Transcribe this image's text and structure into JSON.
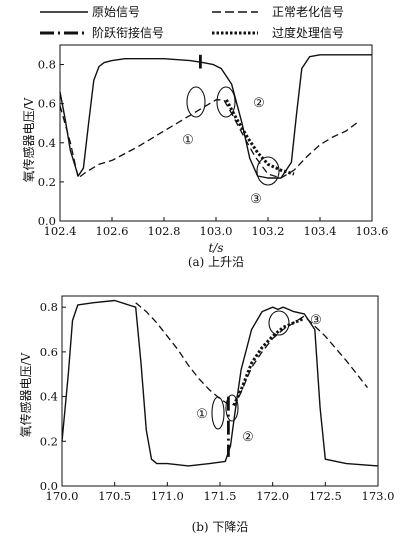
{
  "legend": {
    "original": "原始信号",
    "normal_aging": "正常老化信号",
    "step_link": "阶跃衔接信号",
    "transition": "过度处理信号"
  },
  "chart_data": [
    {
      "type": "line",
      "caption": "(a) 上升沿",
      "xlabel": "t/s",
      "ylabel": "氧传感器电压/V",
      "xlim": [
        102.4,
        103.6
      ],
      "ylim": [
        0.0,
        0.9
      ],
      "xticks": [
        "102.4",
        "102.6",
        "102.8",
        "103.0",
        "103.2",
        "103.4",
        "103.6"
      ],
      "yticks": [
        "0.0",
        "0.2",
        "0.4",
        "0.6",
        "0.8"
      ],
      "annotations": [
        "①",
        "②",
        "③"
      ],
      "series": [
        {
          "name": "原始信号",
          "style": "solid",
          "x": [
            102.4,
            102.42,
            102.44,
            102.47,
            102.49,
            102.51,
            102.53,
            102.55,
            102.57,
            102.6,
            102.65,
            102.7,
            102.8,
            102.9,
            102.95,
            102.99,
            103.02,
            103.06,
            103.1,
            103.13,
            103.16,
            103.2,
            103.25,
            103.29,
            103.31,
            103.33,
            103.36,
            103.4,
            103.5,
            103.6
          ],
          "y": [
            0.66,
            0.52,
            0.36,
            0.23,
            0.27,
            0.5,
            0.72,
            0.79,
            0.81,
            0.82,
            0.83,
            0.83,
            0.83,
            0.82,
            0.81,
            0.8,
            0.78,
            0.7,
            0.5,
            0.32,
            0.23,
            0.22,
            0.22,
            0.3,
            0.55,
            0.78,
            0.84,
            0.85,
            0.85,
            0.85
          ]
        },
        {
          "name": "正常老化信号",
          "style": "dashed",
          "x": [
            102.4,
            102.44,
            102.47,
            102.5,
            102.55,
            102.6,
            102.7,
            102.8,
            102.9,
            102.95,
            103.0,
            103.03,
            103.06,
            103.1,
            103.15,
            103.2,
            103.25,
            103.3,
            103.35,
            103.4,
            103.45,
            103.5,
            103.55
          ],
          "y": [
            0.59,
            0.4,
            0.22,
            0.25,
            0.29,
            0.31,
            0.38,
            0.46,
            0.54,
            0.58,
            0.62,
            0.62,
            0.55,
            0.45,
            0.33,
            0.24,
            0.22,
            0.26,
            0.33,
            0.39,
            0.43,
            0.46,
            0.51
          ]
        },
        {
          "name": "阶跃衔接信号",
          "style": "dashdot",
          "x": [
            102.94,
            102.94
          ],
          "y": [
            0.85,
            0.78
          ]
        },
        {
          "name": "过度处理信号",
          "style": "dotted",
          "x": [
            103.04,
            103.08,
            103.12,
            103.16,
            103.2,
            103.25,
            103.3
          ],
          "y": [
            0.62,
            0.52,
            0.43,
            0.35,
            0.29,
            0.26,
            0.24
          ]
        }
      ]
    },
    {
      "type": "line",
      "caption": "(b) 下降沿",
      "xlabel": "",
      "ylabel": "氧传感器电压/V",
      "xlim": [
        170.0,
        173.0
      ],
      "ylim": [
        0.0,
        0.85
      ],
      "xticks": [
        "170.0",
        "170.5",
        "171.0",
        "171.5",
        "172.0",
        "172.5",
        "173.0"
      ],
      "yticks": [
        "0.0",
        "0.2",
        "0.4",
        "0.6",
        "0.8"
      ],
      "annotations": [
        "①",
        "②",
        "③"
      ],
      "series": [
        {
          "name": "原始信号",
          "style": "solid",
          "x": [
            170.0,
            170.06,
            170.1,
            170.15,
            170.3,
            170.5,
            170.7,
            170.75,
            170.8,
            170.85,
            170.9,
            171.0,
            171.2,
            171.4,
            171.55,
            171.6,
            171.64,
            171.7,
            171.8,
            171.9,
            172.0,
            172.05,
            172.1,
            172.15,
            172.2,
            172.3,
            172.4,
            172.45,
            172.5,
            172.7,
            173.0
          ],
          "y": [
            0.2,
            0.5,
            0.74,
            0.81,
            0.82,
            0.83,
            0.8,
            0.55,
            0.25,
            0.12,
            0.1,
            0.1,
            0.09,
            0.1,
            0.11,
            0.18,
            0.32,
            0.52,
            0.7,
            0.78,
            0.8,
            0.79,
            0.8,
            0.79,
            0.78,
            0.77,
            0.7,
            0.35,
            0.12,
            0.1,
            0.09
          ]
        },
        {
          "name": "正常老化信号",
          "style": "dashed",
          "x": [
            170.7,
            170.8,
            170.9,
            171.0,
            171.1,
            171.2,
            171.3,
            171.4,
            171.5,
            171.6,
            171.65,
            171.7,
            171.8,
            171.9,
            172.0,
            172.1,
            172.2,
            172.3,
            172.5,
            172.7,
            172.9
          ],
          "y": [
            0.82,
            0.78,
            0.73,
            0.67,
            0.61,
            0.54,
            0.48,
            0.43,
            0.39,
            0.36,
            0.37,
            0.42,
            0.53,
            0.6,
            0.66,
            0.7,
            0.73,
            0.76,
            0.67,
            0.56,
            0.44
          ]
        },
        {
          "name": "阶跃衔接信号",
          "style": "dashdot",
          "x": [
            171.58,
            171.58
          ],
          "y": [
            0.4,
            0.13
          ]
        },
        {
          "name": "过度处理信号",
          "style": "dotted",
          "x": [
            171.63,
            171.7,
            171.8,
            171.9,
            172.0,
            172.1,
            172.2,
            172.3
          ],
          "y": [
            0.36,
            0.43,
            0.55,
            0.62,
            0.67,
            0.71,
            0.73,
            0.75
          ]
        }
      ]
    }
  ]
}
